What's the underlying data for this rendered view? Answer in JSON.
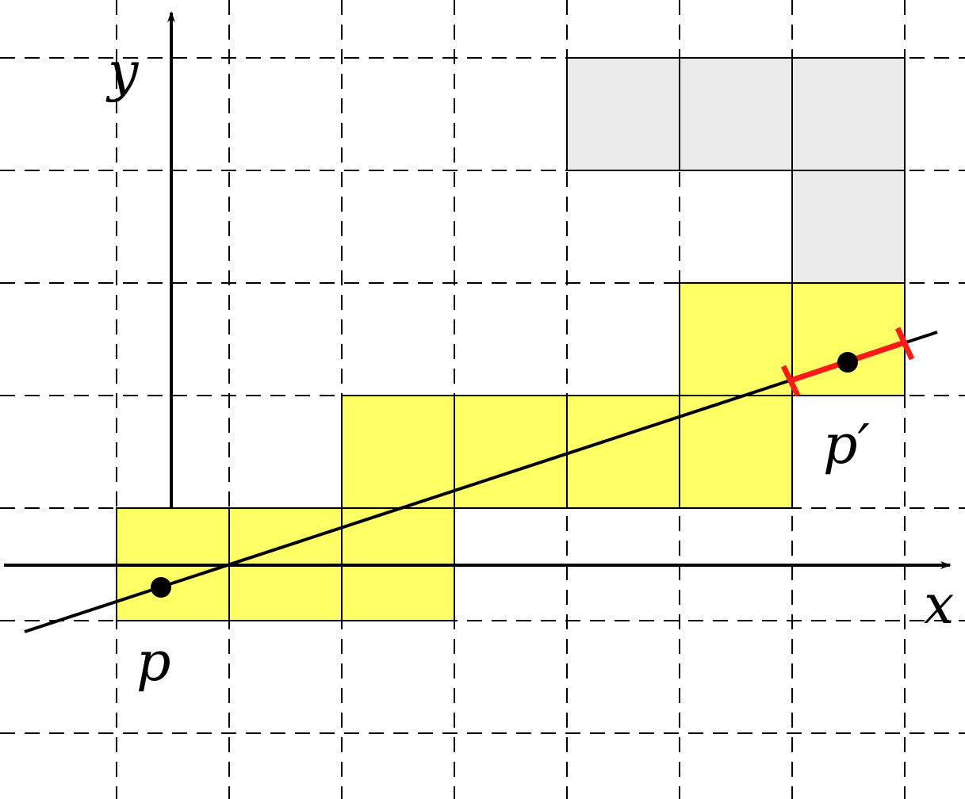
{
  "labels": {
    "y_axis": "y",
    "x_axis": "x",
    "point_p": "p",
    "point_p_prime": "p′"
  },
  "colors": {
    "traversed_cell": "#ffff66",
    "other_cell": "#ebebeb",
    "segment_highlight": "#ff1a1a",
    "ink": "#000000",
    "background": "#ffffff"
  },
  "grid": {
    "columns": [
      0,
      1,
      2,
      3,
      4,
      5,
      6,
      7
    ],
    "rows": [
      0,
      1,
      2,
      3,
      4,
      5,
      6
    ]
  },
  "yellow_cells": [
    [
      0,
      0
    ],
    [
      1,
      0
    ],
    [
      2,
      0
    ],
    [
      2,
      1
    ],
    [
      3,
      1
    ],
    [
      4,
      1
    ],
    [
      5,
      1
    ],
    [
      5,
      2
    ],
    [
      6,
      2
    ]
  ],
  "gray_cells": [
    [
      4,
      4
    ],
    [
      5,
      4
    ],
    [
      6,
      4
    ],
    [
      6,
      3
    ]
  ],
  "points": {
    "p": [
      0.4,
      0.3
    ],
    "p_prime": [
      6.5,
      2.3
    ]
  }
}
